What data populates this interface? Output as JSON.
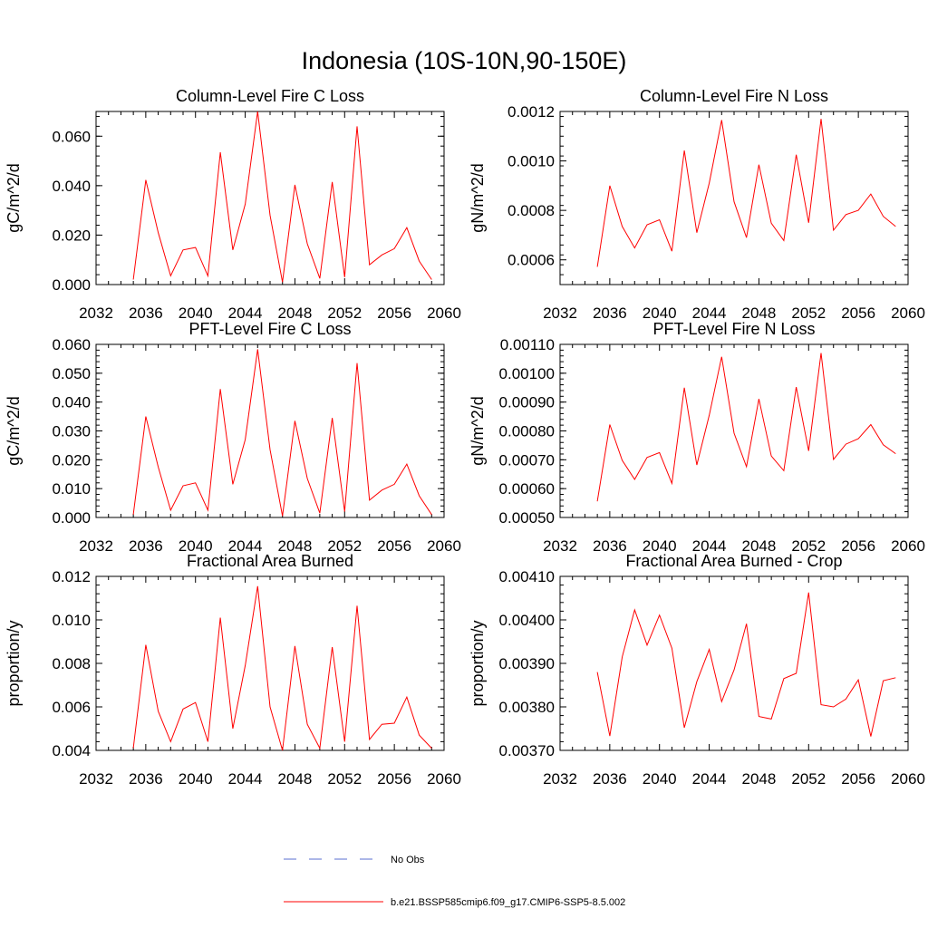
{
  "page_title": "Indonesia (10S-10N,90-150E)",
  "legend": {
    "obs_label": "No Obs",
    "model_label": "b.e21.BSSP585cmip6.f09_g17.CMIP6-SSP5-8.5.002",
    "obs_color": "#5a6fd0",
    "model_color": "#ff0000"
  },
  "chart_data": [
    {
      "type": "line",
      "title": "Column-Level Fire C Loss",
      "ylabel": "gC/m^2/d",
      "xlim": [
        2032,
        2060
      ],
      "x_ticks": [
        2032,
        2036,
        2040,
        2044,
        2048,
        2052,
        2056,
        2060
      ],
      "ylim": [
        0,
        0.07
      ],
      "y_ticks": [
        0,
        0.02,
        0.04,
        0.06
      ],
      "y_tick_labels": [
        "0.000",
        "0.020",
        "0.040",
        "0.060"
      ],
      "series": [
        {
          "color": "#ff0000",
          "x": [
            2035,
            2036,
            2037,
            2038,
            2039,
            2040,
            2041,
            2042,
            2043,
            2044,
            2045,
            2046,
            2047,
            2048,
            2049,
            2050,
            2051,
            2052,
            2053,
            2054,
            2055,
            2056,
            2057,
            2058,
            2059
          ],
          "values": [
            0.002,
            0.0423,
            0.021,
            0.0035,
            0.014,
            0.015,
            0.0035,
            0.0535,
            0.014,
            0.0325,
            0.07,
            0.028,
            0.001,
            0.0403,
            0.0165,
            0.0025,
            0.0415,
            0.003,
            0.064,
            0.008,
            0.012,
            0.0145,
            0.023,
            0.0095,
            0.002
          ]
        }
      ]
    },
    {
      "type": "line",
      "title": "Column-Level Fire N Loss",
      "ylabel": "gN/m^2/d",
      "xlim": [
        2032,
        2060
      ],
      "x_ticks": [
        2032,
        2036,
        2040,
        2044,
        2048,
        2052,
        2056,
        2060
      ],
      "ylim": [
        0.0005,
        0.0012
      ],
      "y_ticks": [
        0.0006,
        0.0008,
        0.001,
        0.0012
      ],
      "y_tick_labels": [
        "0.0006",
        "0.0008",
        "0.0010",
        "0.0012"
      ],
      "series": [
        {
          "color": "#ff0000",
          "x": [
            2035,
            2036,
            2037,
            2038,
            2039,
            2040,
            2041,
            2042,
            2043,
            2044,
            2045,
            2046,
            2047,
            2048,
            2049,
            2050,
            2051,
            2052,
            2053,
            2054,
            2055,
            2056,
            2057,
            2058,
            2059
          ],
          "values": [
            0.000572,
            0.0009,
            0.000735,
            0.000648,
            0.000742,
            0.000762,
            0.000635,
            0.001042,
            0.00071,
            0.00091,
            0.001165,
            0.000835,
            0.00069,
            0.000985,
            0.000748,
            0.000678,
            0.001025,
            0.00075,
            0.00117,
            0.00072,
            0.000783,
            0.0008,
            0.000866,
            0.000776,
            0.000735
          ]
        }
      ]
    },
    {
      "type": "line",
      "title": "PFT-Level Fire C Loss",
      "ylabel": "gC/m^2/d",
      "xlim": [
        2032,
        2060
      ],
      "x_ticks": [
        2032,
        2036,
        2040,
        2044,
        2048,
        2052,
        2056,
        2060
      ],
      "ylim": [
        0,
        0.06
      ],
      "y_ticks": [
        0,
        0.01,
        0.02,
        0.03,
        0.04,
        0.05,
        0.06
      ],
      "y_tick_labels": [
        "0.000",
        "0.010",
        "0.020",
        "0.030",
        "0.040",
        "0.050",
        "0.060"
      ],
      "series": [
        {
          "color": "#ff0000",
          "x": [
            2035,
            2036,
            2037,
            2038,
            2039,
            2040,
            2041,
            2042,
            2043,
            2044,
            2045,
            2046,
            2047,
            2048,
            2049,
            2050,
            2051,
            2052,
            2053,
            2054,
            2055,
            2056,
            2057,
            2058,
            2059
          ],
          "values": [
            0.001,
            0.035,
            0.0175,
            0.0025,
            0.011,
            0.012,
            0.0025,
            0.0445,
            0.0115,
            0.027,
            0.0583,
            0.0235,
            0.0005,
            0.0335,
            0.0135,
            0.0015,
            0.0345,
            0.002,
            0.0535,
            0.006,
            0.0095,
            0.0115,
            0.0185,
            0.0075,
            0.001
          ]
        }
      ]
    },
    {
      "type": "line",
      "title": "PFT-Level Fire N Loss",
      "ylabel": "gN/m^2/d",
      "xlim": [
        2032,
        2060
      ],
      "x_ticks": [
        2032,
        2036,
        2040,
        2044,
        2048,
        2052,
        2056,
        2060
      ],
      "ylim": [
        0.0005,
        0.0011
      ],
      "y_ticks": [
        0.0005,
        0.0006,
        0.0007,
        0.0008,
        0.0009,
        0.001,
        0.0011
      ],
      "y_tick_labels": [
        "0.00050",
        "0.00060",
        "0.00070",
        "0.00080",
        "0.00090",
        "0.00100",
        "0.00110"
      ],
      "series": [
        {
          "color": "#ff0000",
          "x": [
            2035,
            2036,
            2037,
            2038,
            2039,
            2040,
            2041,
            2042,
            2043,
            2044,
            2045,
            2046,
            2047,
            2048,
            2049,
            2050,
            2051,
            2052,
            2053,
            2054,
            2055,
            2056,
            2057,
            2058,
            2059
          ],
          "values": [
            0.000556,
            0.000822,
            0.000698,
            0.000632,
            0.000708,
            0.000725,
            0.000618,
            0.00095,
            0.000682,
            0.000854,
            0.001057,
            0.000792,
            0.000676,
            0.000911,
            0.000713,
            0.000662,
            0.000952,
            0.000731,
            0.00107,
            0.000701,
            0.000754,
            0.000773,
            0.000822,
            0.000752,
            0.000721
          ]
        }
      ]
    },
    {
      "type": "line",
      "title": "Fractional Area Burned",
      "ylabel": "proportion/y",
      "xlim": [
        2032,
        2060
      ],
      "x_ticks": [
        2032,
        2036,
        2040,
        2044,
        2048,
        2052,
        2056,
        2060
      ],
      "ylim": [
        0.004,
        0.012
      ],
      "y_ticks": [
        0.004,
        0.006,
        0.008,
        0.01,
        0.012
      ],
      "y_tick_labels": [
        "0.004",
        "0.006",
        "0.008",
        "0.010",
        "0.012"
      ],
      "series": [
        {
          "color": "#ff0000",
          "x": [
            2035,
            2036,
            2037,
            2038,
            2039,
            2040,
            2041,
            2042,
            2043,
            2044,
            2045,
            2046,
            2047,
            2048,
            2049,
            2050,
            2051,
            2052,
            2053,
            2054,
            2055,
            2056,
            2057,
            2058,
            2059
          ],
          "values": [
            0.0041,
            0.00885,
            0.0058,
            0.0044,
            0.0059,
            0.0062,
            0.0044,
            0.0101,
            0.005,
            0.0079,
            0.01155,
            0.006,
            0.004,
            0.0088,
            0.0052,
            0.0041,
            0.00875,
            0.0044,
            0.01065,
            0.0045,
            0.0052,
            0.00525,
            0.00645,
            0.0047,
            0.0041
          ]
        }
      ]
    },
    {
      "type": "line",
      "title": "Fractional Area Burned - Crop",
      "ylabel": "proportion/y",
      "xlim": [
        2032,
        2060
      ],
      "x_ticks": [
        2032,
        2036,
        2040,
        2044,
        2048,
        2052,
        2056,
        2060
      ],
      "ylim": [
        0.0037,
        0.0041
      ],
      "y_ticks": [
        0.0037,
        0.0038,
        0.0039,
        0.004,
        0.0041
      ],
      "y_tick_labels": [
        "0.00370",
        "0.00380",
        "0.00390",
        "0.00400",
        "0.00410"
      ],
      "series": [
        {
          "color": "#ff0000",
          "x": [
            2035,
            2036,
            2037,
            2038,
            2039,
            2040,
            2041,
            2042,
            2043,
            2044,
            2045,
            2046,
            2047,
            2048,
            2049,
            2050,
            2051,
            2052,
            2053,
            2054,
            2055,
            2056,
            2057,
            2058,
            2059
          ],
          "values": [
            0.00388,
            0.003733,
            0.003915,
            0.004023,
            0.003942,
            0.004011,
            0.003935,
            0.003752,
            0.003858,
            0.003932,
            0.003812,
            0.003885,
            0.003991,
            0.003778,
            0.003772,
            0.003865,
            0.003877,
            0.004063,
            0.003805,
            0.0038,
            0.003818,
            0.003862,
            0.003732,
            0.00386,
            0.003867
          ]
        }
      ]
    }
  ]
}
